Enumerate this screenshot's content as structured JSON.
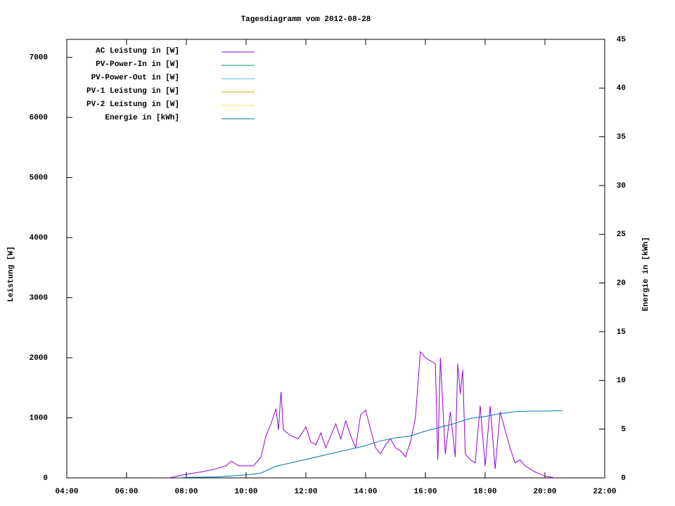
{
  "chart_data": {
    "type": "line",
    "title": "Tagesdiagramm vom 2012-08-28",
    "y_label": "Leistung [W]",
    "y2_label": "Energie in [kWh]",
    "xlim": [
      240,
      1320
    ],
    "xticks": [
      {
        "value": 240,
        "label": "04:00"
      },
      {
        "value": 360,
        "label": "06:00"
      },
      {
        "value": 480,
        "label": "08:00"
      },
      {
        "value": 600,
        "label": "10:00"
      },
      {
        "value": 720,
        "label": "12:00"
      },
      {
        "value": 840,
        "label": "14:00"
      },
      {
        "value": 960,
        "label": "16:00"
      },
      {
        "value": 1080,
        "label": "18:00"
      },
      {
        "value": 1200,
        "label": "20:00"
      },
      {
        "value": 1320,
        "label": "22:00"
      }
    ],
    "ylim": [
      0,
      7300
    ],
    "yticks": [
      0,
      1000,
      2000,
      3000,
      4000,
      5000,
      6000,
      7000
    ],
    "y2lim": [
      0,
      45
    ],
    "y2ticks": [
      0,
      5,
      10,
      15,
      20,
      25,
      30,
      35,
      40,
      45
    ],
    "series": [
      {
        "name": "AC Leistung in [W]",
        "color": "#9400d3",
        "x": [
          445,
          480,
          510,
          540,
          560,
          570,
          585,
          600,
          615,
          630,
          640,
          650,
          660,
          665,
          670,
          675,
          690,
          705,
          720,
          730,
          740,
          750,
          760,
          770,
          780,
          790,
          800,
          810,
          820,
          830,
          840,
          850,
          860,
          870,
          880,
          890,
          900,
          910,
          920,
          930,
          940,
          950,
          960,
          970,
          980,
          985,
          990,
          1000,
          1010,
          1020,
          1025,
          1030,
          1035,
          1040,
          1050,
          1060,
          1070,
          1080,
          1090,
          1100,
          1110,
          1120,
          1130,
          1140,
          1150,
          1160,
          1180,
          1200,
          1220
        ],
        "values": [
          0,
          60,
          100,
          150,
          200,
          280,
          200,
          200,
          200,
          350,
          700,
          900,
          1150,
          800,
          1430,
          800,
          700,
          650,
          850,
          600,
          550,
          750,
          500,
          700,
          900,
          650,
          950,
          700,
          500,
          1050,
          1130,
          800,
          500,
          400,
          550,
          650,
          500,
          450,
          350,
          600,
          1000,
          2100,
          2000,
          1950,
          1900,
          300,
          2000,
          400,
          1100,
          350,
          1900,
          1400,
          1800,
          400,
          300,
          250,
          1200,
          200,
          1200,
          150,
          1100,
          800,
          500,
          250,
          300,
          200,
          100,
          30,
          0
        ]
      },
      {
        "name": "PV-Power-In in [W]",
        "color": "#009e73",
        "x": [],
        "values": []
      },
      {
        "name": "PV-Power-Out in [W]",
        "color": "#56b4e9",
        "x": [],
        "values": []
      },
      {
        "name": "PV-1 Leistung in [W]",
        "color": "#e69f00",
        "x": [],
        "values": []
      },
      {
        "name": "PV-2 Leistung in [W]",
        "color": "#f0e442",
        "x": [],
        "values": []
      },
      {
        "name": "Energie in [kWh]",
        "color": "#0072b2",
        "axis": "y2",
        "x": [
          465,
          480,
          540,
          600,
          630,
          660,
          720,
          780,
          840,
          870,
          900,
          930,
          960,
          990,
          1020,
          1050,
          1080,
          1110,
          1140,
          1170,
          1200,
          1235
        ],
        "values": [
          0,
          0.05,
          0.1,
          0.3,
          0.5,
          1.2,
          1.9,
          2.6,
          3.3,
          3.8,
          4.1,
          4.3,
          4.8,
          5.2,
          5.6,
          6.1,
          6.3,
          6.6,
          6.8,
          6.85,
          6.85,
          6.9
        ]
      }
    ]
  }
}
